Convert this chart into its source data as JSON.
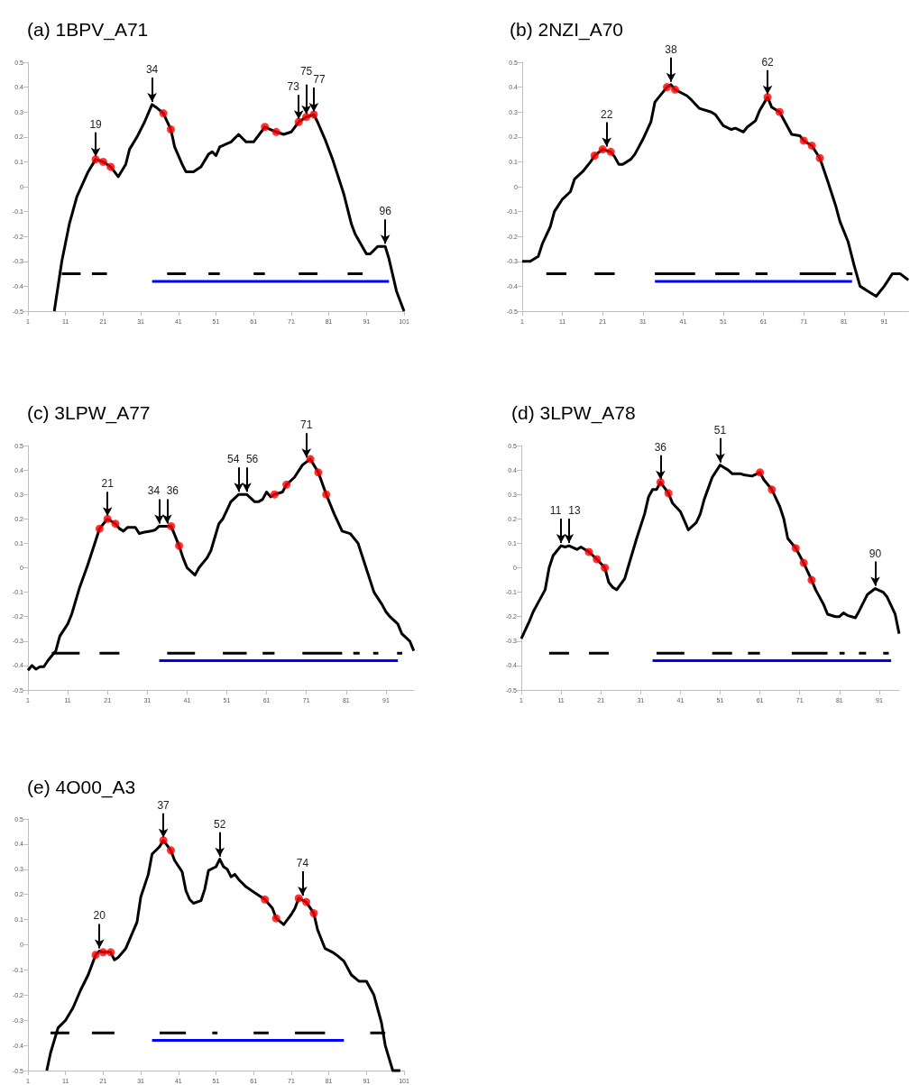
{
  "chart_data": [
    {
      "type": "line",
      "title": "(a) 1BPV_A71",
      "xlim": [
        1,
        101
      ],
      "xticks": [
        1,
        11,
        21,
        31,
        41,
        51,
        61,
        71,
        81,
        91,
        101
      ],
      "ylim": [
        -0.5,
        0.5
      ],
      "yticks": [
        -0.5,
        -0.4,
        -0.3,
        -0.2,
        -0.1,
        0,
        0.1,
        0.2,
        0.3,
        0.4,
        0.5
      ],
      "grid": false,
      "series": [
        {
          "type": "line",
          "color": "#000000",
          "marker": "none",
          "x": [
            8,
            10,
            12,
            14,
            17,
            19,
            21,
            23,
            25,
            27,
            28,
            30,
            32,
            34,
            35,
            37,
            39,
            40,
            42,
            43,
            45,
            47,
            49,
            50,
            51,
            52,
            55,
            57,
            59,
            61,
            64,
            67,
            69,
            71,
            73,
            75,
            77,
            78,
            80,
            82,
            85,
            87,
            88,
            91,
            92,
            94,
            96,
            97,
            99,
            101
          ],
          "values": [
            -0.5,
            -0.3,
            -0.15,
            -0.04,
            0.06,
            0.11,
            0.1,
            0.08,
            0.04,
            0.09,
            0.15,
            0.2,
            0.26,
            0.33,
            0.32,
            0.295,
            0.23,
            0.16,
            0.09,
            0.06,
            0.06,
            0.08,
            0.13,
            0.14,
            0.125,
            0.16,
            0.18,
            0.21,
            0.18,
            0.18,
            0.24,
            0.22,
            0.21,
            0.22,
            0.26,
            0.28,
            0.29,
            0.26,
            0.19,
            0.11,
            -0.03,
            -0.15,
            -0.19,
            -0.27,
            -0.27,
            -0.24,
            -0.24,
            -0.29,
            -0.42,
            -0.5
          ]
        },
        {
          "type": "scatter",
          "color": "#ff0000",
          "marker": "circle",
          "x": [
            19,
            21,
            23,
            37,
            39,
            64,
            67,
            73,
            75,
            77
          ],
          "values": [
            0.11,
            0.1,
            0.08,
            0.295,
            0.23,
            0.24,
            0.22,
            0.26,
            0.28,
            0.29
          ]
        },
        {
          "type": "line",
          "color": "#000000",
          "marker": "none",
          "x": [
            10,
            15,
            16,
            18,
            22,
            30,
            38,
            43,
            46,
            49,
            52,
            56,
            61,
            64,
            68,
            73,
            78,
            82,
            86,
            90
          ],
          "values": [
            -0.35,
            -0.35,
            null,
            -0.35,
            -0.35,
            null,
            -0.35,
            -0.35,
            null,
            -0.35,
            -0.35,
            null,
            -0.35,
            -0.35,
            null,
            -0.35,
            -0.35,
            null,
            -0.35,
            -0.35
          ]
        },
        {
          "type": "line",
          "color": "#0000ff",
          "marker": "none",
          "x": [
            34,
            97
          ],
          "values": [
            -0.38,
            -0.38
          ]
        }
      ],
      "annotations": [
        {
          "text": "19",
          "x": 19,
          "y": 0.11
        },
        {
          "text": "34",
          "x": 34,
          "y": 0.33
        },
        {
          "text": "73",
          "x": 73,
          "y": 0.26
        },
        {
          "text": "75",
          "x": 75,
          "y": 0.28
        },
        {
          "text": "77",
          "x": 77,
          "y": 0.29
        },
        {
          "text": "96",
          "x": 96,
          "y": -0.24
        }
      ]
    },
    {
      "type": "line",
      "title": "(b) 2NZI_A70",
      "xlim": [
        1,
        97
      ],
      "xticks": [
        1,
        11,
        21,
        31,
        41,
        51,
        61,
        71,
        81,
        91
      ],
      "ylim": [
        -0.5,
        0.5
      ],
      "yticks": [
        -0.5,
        -0.4,
        -0.3,
        -0.2,
        -0.1,
        0,
        0.1,
        0.2,
        0.3,
        0.4,
        0.5
      ],
      "grid": false,
      "series": [
        {
          "type": "line",
          "color": "#000000",
          "marker": "none",
          "x": [
            1,
            3,
            5,
            6,
            8,
            9,
            11,
            13,
            14,
            16,
            18,
            19,
            21,
            23,
            24,
            25,
            26,
            28,
            29,
            31,
            33,
            34,
            35,
            37,
            38,
            39,
            42,
            43,
            45,
            48,
            49,
            51,
            53,
            54,
            56,
            57,
            59,
            60,
            62,
            63,
            65,
            66,
            68,
            70,
            71,
            73,
            75,
            77,
            79,
            80,
            82,
            83.5,
            85,
            87,
            89,
            91,
            93,
            95,
            97
          ],
          "values": [
            -0.3,
            -0.3,
            -0.28,
            -0.23,
            -0.16,
            -0.1,
            -0.05,
            -0.02,
            0.03,
            0.06,
            0.1,
            0.125,
            0.15,
            0.14,
            0.12,
            0.09,
            0.09,
            0.11,
            0.13,
            0.19,
            0.26,
            0.34,
            0.36,
            0.4,
            0.41,
            0.39,
            0.365,
            0.35,
            0.315,
            0.3,
            0.29,
            0.245,
            0.23,
            0.235,
            0.22,
            0.24,
            0.265,
            0.305,
            0.36,
            0.32,
            0.3,
            0.27,
            0.21,
            0.205,
            0.185,
            0.165,
            0.115,
            0.02,
            -0.08,
            -0.14,
            -0.22,
            -0.315,
            -0.4,
            -0.42,
            -0.44,
            -0.4,
            -0.35,
            -0.35,
            -0.375
          ]
        },
        {
          "type": "scatter",
          "color": "#ff0000",
          "marker": "circle",
          "x": [
            19,
            21,
            23,
            37,
            39,
            62,
            65,
            71,
            73,
            75
          ],
          "values": [
            0.125,
            0.15,
            0.14,
            0.4,
            0.39,
            0.36,
            0.3,
            0.185,
            0.165,
            0.115
          ]
        },
        {
          "type": "line",
          "color": "#000000",
          "marker": "none",
          "x": [
            7,
            12,
            15,
            19,
            24,
            30,
            34,
            44,
            46,
            49,
            55,
            57,
            59,
            62,
            66,
            70,
            79,
            80,
            81.6,
            83.1
          ],
          "values": [
            -0.35,
            -0.35,
            null,
            -0.35,
            -0.35,
            null,
            -0.35,
            -0.35,
            null,
            -0.35,
            -0.35,
            null,
            -0.35,
            -0.35,
            null,
            -0.35,
            -0.35,
            null,
            -0.35,
            -0.35
          ]
        },
        {
          "type": "line",
          "color": "#0000ff",
          "marker": "none",
          "x": [
            34,
            83
          ],
          "values": [
            -0.38,
            -0.38
          ]
        }
      ],
      "annotations": [
        {
          "text": "22",
          "x": 22,
          "y": 0.15
        },
        {
          "text": "38",
          "x": 38,
          "y": 0.41
        },
        {
          "text": "62",
          "x": 62,
          "y": 0.36
        }
      ]
    },
    {
      "type": "line",
      "title": "(c) 3LPW_A77",
      "xlim": [
        1,
        98
      ],
      "xticks": [
        1,
        11,
        21,
        31,
        41,
        51,
        61,
        71,
        81,
        91
      ],
      "ylim": [
        -0.5,
        0.5
      ],
      "yticks": [
        -0.5,
        -0.4,
        -0.3,
        -0.2,
        -0.1,
        0,
        0.1,
        0.2,
        0.3,
        0.4,
        0.5
      ],
      "grid": false,
      "series": [
        {
          "type": "line",
          "color": "#000000",
          "marker": "none",
          "x": [
            1,
            2,
            3,
            4,
            5,
            6,
            8,
            9,
            11,
            12,
            14,
            16,
            18,
            19,
            21,
            23,
            24,
            25,
            26,
            28,
            29,
            30,
            32,
            33,
            34,
            35,
            37,
            39,
            40,
            41,
            43,
            44,
            46,
            47,
            49,
            50,
            52,
            54,
            56,
            58,
            59,
            60,
            61,
            62,
            63,
            65,
            66,
            68,
            70,
            72,
            74,
            76,
            78,
            80,
            82,
            84,
            86,
            88,
            90,
            91,
            92,
            94,
            95,
            97,
            98
          ],
          "values": [
            -0.42,
            -0.4,
            -0.415,
            -0.405,
            -0.405,
            -0.38,
            -0.34,
            -0.28,
            -0.23,
            -0.19,
            -0.08,
            0.01,
            0.11,
            0.16,
            0.2,
            0.18,
            0.16,
            0.15,
            0.165,
            0.165,
            0.14,
            0.145,
            0.15,
            0.155,
            0.17,
            0.17,
            0.17,
            0.09,
            0.04,
            0,
            -0.03,
            0,
            0.04,
            0.07,
            0.18,
            0.2,
            0.27,
            0.3,
            0.3,
            0.27,
            0.27,
            0.28,
            0.31,
            0.29,
            0.3,
            0.31,
            0.34,
            0.37,
            0.42,
            0.445,
            0.39,
            0.3,
            0.22,
            0.15,
            0.14,
            0.1,
            0,
            -0.1,
            -0.15,
            -0.18,
            -0.2,
            -0.23,
            -0.27,
            -0.3,
            -0.34
          ]
        },
        {
          "type": "scatter",
          "color": "#ff0000",
          "marker": "circle",
          "x": [
            19,
            21,
            23,
            37,
            39,
            63,
            66,
            72,
            74,
            76
          ],
          "values": [
            0.16,
            0.2,
            0.18,
            0.17,
            0.09,
            0.3,
            0.34,
            0.445,
            0.39,
            0.3
          ]
        },
        {
          "type": "line",
          "color": "#000000",
          "marker": "none",
          "x": [
            7,
            14,
            16,
            19,
            24,
            30,
            36,
            43,
            46,
            50,
            56,
            58,
            60,
            63,
            66,
            70,
            80,
            81,
            82.8,
            84.4,
            86,
            87.8,
            89.1,
            91,
            93.8,
            95.1
          ],
          "values": [
            -0.35,
            -0.35,
            null,
            -0.35,
            -0.35,
            null,
            -0.35,
            -0.35,
            null,
            -0.35,
            -0.35,
            null,
            -0.35,
            -0.35,
            null,
            -0.35,
            -0.35,
            null,
            -0.35,
            -0.35,
            null,
            -0.35,
            -0.35,
            null,
            -0.35,
            -0.35
          ]
        },
        {
          "type": "line",
          "color": "#0000ff",
          "marker": "none",
          "x": [
            34,
            94
          ],
          "values": [
            -0.38,
            -0.38
          ]
        }
      ],
      "annotations": [
        {
          "text": "21",
          "x": 21,
          "y": 0.2
        },
        {
          "text": "34",
          "x": 34,
          "y": 0.17
        },
        {
          "text": "36",
          "x": 36,
          "y": 0.17
        },
        {
          "text": "54",
          "x": 54,
          "y": 0.3
        },
        {
          "text": "56",
          "x": 56,
          "y": 0.3
        },
        {
          "text": "71",
          "x": 71,
          "y": 0.44
        }
      ]
    },
    {
      "type": "line",
      "title": "(d) 3LPW_A78",
      "xlim": [
        1,
        96
      ],
      "xticks": [
        1,
        11,
        21,
        31,
        41,
        51,
        61,
        71,
        81,
        91
      ],
      "ylim": [
        -0.5,
        0.5
      ],
      "yticks": [
        -0.5,
        -0.4,
        -0.3,
        -0.2,
        -0.1,
        0,
        0.1,
        0.2,
        0.3,
        0.4,
        0.5
      ],
      "grid": false,
      "series": [
        {
          "type": "line",
          "color": "#000000",
          "marker": "none",
          "x": [
            1,
            3,
            4,
            5,
            7,
            8,
            9,
            11,
            12,
            13,
            15,
            16,
            17,
            18,
            20,
            22,
            23,
            24,
            25,
            27,
            28,
            30,
            32,
            33,
            34,
            35,
            36,
            38,
            39,
            41,
            43,
            45,
            46,
            47,
            49,
            51,
            53,
            54,
            56,
            57,
            59,
            61,
            62,
            64,
            66,
            67,
            68,
            70,
            72,
            74,
            75,
            77,
            78,
            80,
            81,
            82,
            83,
            85,
            86,
            88,
            90,
            92,
            93,
            95,
            96
          ],
          "values": [
            -0.29,
            -0.22,
            -0.18,
            -0.15,
            -0.09,
            0,
            0.05,
            0.09,
            0.085,
            0.09,
            0.075,
            0.085,
            0.075,
            0.065,
            0.035,
            0,
            -0.06,
            -0.08,
            -0.09,
            -0.045,
            0.01,
            0.12,
            0.22,
            0.29,
            0.32,
            0.32,
            0.35,
            0.305,
            0.265,
            0.23,
            0.155,
            0.185,
            0.22,
            0.28,
            0.37,
            0.42,
            0.4,
            0.385,
            0.385,
            0.38,
            0.375,
            0.39,
            0.36,
            0.32,
            0.25,
            0.2,
            0.12,
            0.08,
            0.02,
            -0.05,
            -0.09,
            -0.15,
            -0.19,
            -0.2,
            -0.2,
            -0.185,
            -0.195,
            -0.205,
            -0.175,
            -0.11,
            -0.085,
            -0.1,
            -0.12,
            -0.19,
            -0.27
          ]
        },
        {
          "type": "scatter",
          "color": "#ff0000",
          "marker": "circle",
          "x": [
            18,
            20,
            22,
            36,
            38,
            61,
            64,
            70,
            72,
            74
          ],
          "values": [
            0.065,
            0.035,
            0,
            0.35,
            0.305,
            0.39,
            0.32,
            0.08,
            0.02,
            -0.05
          ]
        },
        {
          "type": "line",
          "color": "#000000",
          "marker": "none",
          "x": [
            8,
            13,
            15,
            18,
            23,
            30,
            35,
            42,
            45,
            49,
            54,
            56,
            58,
            61,
            65,
            69,
            78,
            79,
            81,
            82.3,
            84,
            85.9,
            87.7,
            90,
            92,
            93.4
          ],
          "values": [
            -0.35,
            -0.35,
            null,
            -0.35,
            -0.35,
            null,
            -0.35,
            -0.35,
            null,
            -0.35,
            -0.35,
            null,
            -0.35,
            -0.35,
            null,
            -0.35,
            -0.35,
            null,
            -0.35,
            -0.35,
            null,
            -0.35,
            -0.35,
            null,
            -0.35,
            -0.35
          ]
        },
        {
          "type": "line",
          "color": "#0000ff",
          "marker": "none",
          "x": [
            34,
            94
          ],
          "values": [
            -0.38,
            -0.38
          ]
        }
      ],
      "annotations": [
        {
          "text": "11",
          "x": 11,
          "y": 0.09
        },
        {
          "text": "13",
          "x": 13,
          "y": 0.09
        },
        {
          "text": "36",
          "x": 36,
          "y": 0.35
        },
        {
          "text": "51",
          "x": 51,
          "y": 0.42
        },
        {
          "text": "90",
          "x": 90,
          "y": -0.085
        }
      ]
    },
    {
      "type": "line",
      "title": "(e) 4O00_A3",
      "xlim": [
        1,
        101
      ],
      "xticks": [
        1,
        11,
        21,
        31,
        41,
        51,
        61,
        71,
        81,
        91,
        101
      ],
      "ylim": [
        -0.5,
        0.5
      ],
      "yticks": [
        -0.5,
        -0.4,
        -0.3,
        -0.2,
        -0.1,
        0,
        0.1,
        0.2,
        0.3,
        0.4,
        0.5
      ],
      "grid": false,
      "series": [
        {
          "type": "line",
          "color": "#000000",
          "marker": "none",
          "x": [
            6,
            7,
            9,
            11,
            13,
            15,
            17,
            19,
            20,
            21,
            23,
            24,
            25,
            27,
            28,
            30,
            31,
            33,
            34,
            36,
            37,
            39,
            40,
            42,
            43,
            44,
            45,
            47,
            48,
            49,
            51,
            52,
            53,
            54,
            55,
            56,
            57,
            59,
            61,
            63,
            64,
            66,
            67,
            69,
            71,
            72,
            73,
            75,
            77,
            78,
            80,
            82,
            83,
            85,
            87,
            89,
            91,
            93,
            95,
            96,
            98,
            100
          ],
          "values": [
            -0.5,
            -0.43,
            -0.33,
            -0.3,
            -0.25,
            -0.18,
            -0.12,
            -0.04,
            -0.025,
            -0.03,
            -0.03,
            -0.06,
            -0.05,
            -0.015,
            0.02,
            0.09,
            0.19,
            0.28,
            0.36,
            0.39,
            0.415,
            0.375,
            0.335,
            0.29,
            0.215,
            0.18,
            0.165,
            0.175,
            0.22,
            0.295,
            0.31,
            0.34,
            0.31,
            0.3,
            0.27,
            0.28,
            0.26,
            0.23,
            0.21,
            0.19,
            0.18,
            0.145,
            0.105,
            0.08,
            0.12,
            0.145,
            0.185,
            0.17,
            0.125,
            0.06,
            -0.015,
            -0.03,
            -0.04,
            -0.065,
            -0.12,
            -0.145,
            -0.145,
            -0.2,
            -0.31,
            -0.4,
            -0.5,
            -0.5
          ]
        },
        {
          "type": "scatter",
          "color": "#ff0000",
          "marker": "circle",
          "x": [
            19,
            21,
            23,
            37,
            39,
            64,
            67,
            73,
            75,
            77
          ],
          "values": [
            -0.04,
            -0.03,
            -0.03,
            0.415,
            0.375,
            0.18,
            0.105,
            0.185,
            0.17,
            0.125
          ]
        },
        {
          "type": "line",
          "color": "#000000",
          "marker": "none",
          "x": [
            7,
            12,
            15,
            18,
            24,
            30,
            36,
            43,
            46,
            50,
            51.4,
            55,
            61,
            65,
            68,
            72,
            80,
            86,
            92,
            96
          ],
          "values": [
            -0.35,
            -0.35,
            null,
            -0.35,
            -0.35,
            null,
            -0.35,
            -0.35,
            null,
            -0.35,
            -0.35,
            null,
            -0.35,
            -0.35,
            null,
            -0.35,
            -0.35,
            null,
            -0.35,
            -0.35
          ]
        },
        {
          "type": "line",
          "color": "#0000ff",
          "marker": "none",
          "x": [
            34,
            85
          ],
          "values": [
            -0.38,
            -0.38
          ]
        }
      ],
      "annotations": [
        {
          "text": "20",
          "x": 20,
          "y": -0.025
        },
        {
          "text": "37",
          "x": 37,
          "y": 0.415
        },
        {
          "text": "52",
          "x": 52,
          "y": 0.34
        },
        {
          "text": "74",
          "x": 74,
          "y": 0.185
        }
      ]
    }
  ]
}
